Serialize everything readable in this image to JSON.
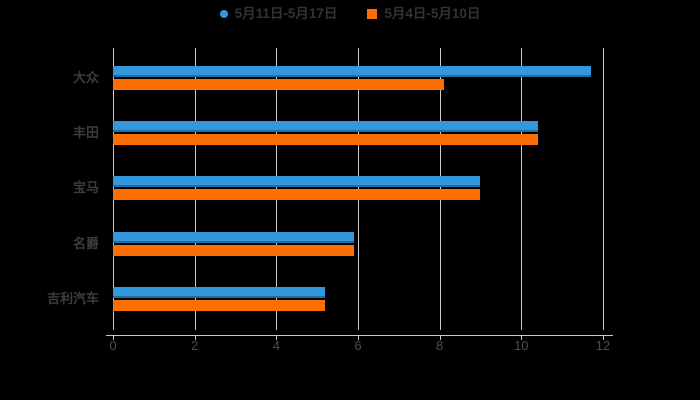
{
  "background_color": "#000000",
  "legend": {
    "items": [
      {
        "label": "5月11日-5月17日",
        "color": "#3398db",
        "marker": "circle"
      },
      {
        "label": "5月4日-5月10日",
        "color": "#ff6e00",
        "marker": "square"
      }
    ],
    "text_color": "#333333"
  },
  "chart_data": {
    "type": "bar",
    "orientation": "horizontal",
    "title": "",
    "xlabel": "",
    "ylabel": "",
    "categories": [
      "大众",
      "丰田",
      "宝马",
      "名爵",
      "吉利汽车"
    ],
    "series": [
      {
        "name": "5月11日-5月17日",
        "color": "#3398db",
        "edge_color": "#1d6fa8",
        "values": [
          11.7,
          10.4,
          9.0,
          5.9,
          5.2
        ]
      },
      {
        "name": "5月4日-5月10日",
        "color": "#ff6e00",
        "edge_color": "#ff6e00",
        "values": [
          8.1,
          10.4,
          9.0,
          5.9,
          5.2
        ]
      }
    ],
    "x_axis": {
      "min": 0,
      "max": 12,
      "ticks": [
        0,
        2,
        4,
        6,
        8,
        10,
        12
      ]
    },
    "grid": true,
    "legend_position": "top",
    "gridline_color": "#cccccc",
    "axis_line_color": "#c9c9c9",
    "tick_text_color": "#4d4d4d",
    "category_text_color": "#3d3d3d"
  }
}
